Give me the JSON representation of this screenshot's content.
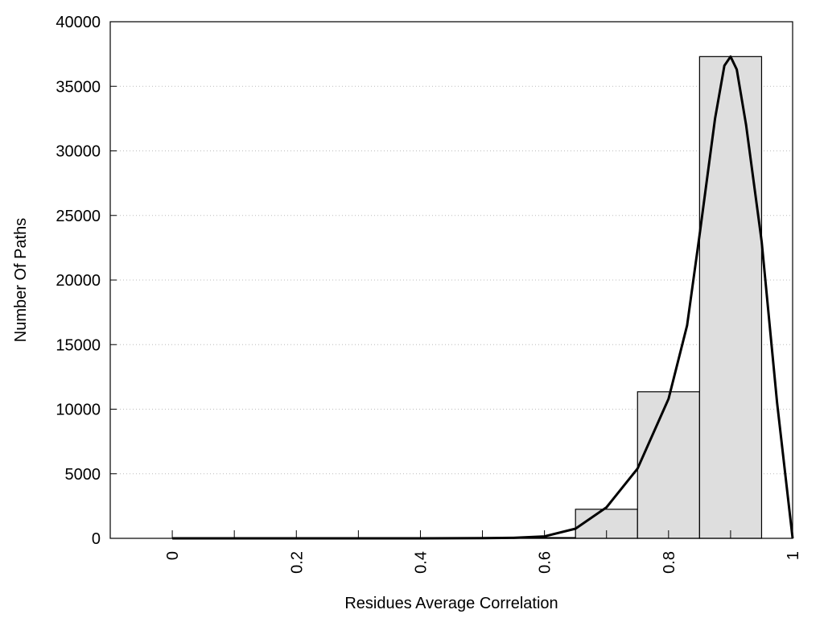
{
  "chart_data": {
    "type": "bar",
    "title": "",
    "xlabel": "Residues Average Correlation",
    "ylabel": "Number Of Paths",
    "xlim": [
      -0.1,
      1.0
    ],
    "ylim": [
      0,
      40000
    ],
    "grid": "horizontal dotted",
    "x_ticks": [
      0,
      0.1,
      0.2,
      0.3,
      0.4,
      0.5,
      0.6,
      0.7,
      0.8,
      0.9,
      1.0
    ],
    "x_tick_labels": [
      {
        "value": 0,
        "label": "0"
      },
      {
        "value": 0.2,
        "label": "0.2"
      },
      {
        "value": 0.4,
        "label": "0.4"
      },
      {
        "value": 0.6,
        "label": "0.6"
      },
      {
        "value": 0.8,
        "label": "0.8"
      },
      {
        "value": 1.0,
        "label": "1"
      }
    ],
    "y_ticks": [
      0,
      5000,
      10000,
      15000,
      20000,
      25000,
      30000,
      35000,
      40000
    ],
    "y_tick_labels": [
      "0",
      "5000",
      "10000",
      "15000",
      "20000",
      "25000",
      "30000",
      "35000",
      "40000"
    ],
    "bars": [
      {
        "center": 0.6,
        "width": 0.1,
        "value": 60
      },
      {
        "center": 0.7,
        "width": 0.1,
        "value": 2250
      },
      {
        "center": 0.8,
        "width": 0.1,
        "value": 11350
      },
      {
        "center": 0.9,
        "width": 0.1,
        "value": 37300
      }
    ],
    "bar_color": "#dedede",
    "fit_curve": {
      "color": "#000000",
      "x": [
        0,
        0.1,
        0.2,
        0.3,
        0.4,
        0.5,
        0.55,
        0.6,
        0.65,
        0.7,
        0.75,
        0.8,
        0.83,
        0.85,
        0.875,
        0.89,
        0.9,
        0.91,
        0.925,
        0.95,
        0.975,
        1.0
      ],
      "y": [
        0,
        0,
        0,
        0,
        0,
        10,
        40,
        150,
        750,
        2400,
        5400,
        10800,
        16500,
        23500,
        32500,
        36600,
        37300,
        36300,
        32000,
        23000,
        10500,
        0
      ]
    }
  }
}
